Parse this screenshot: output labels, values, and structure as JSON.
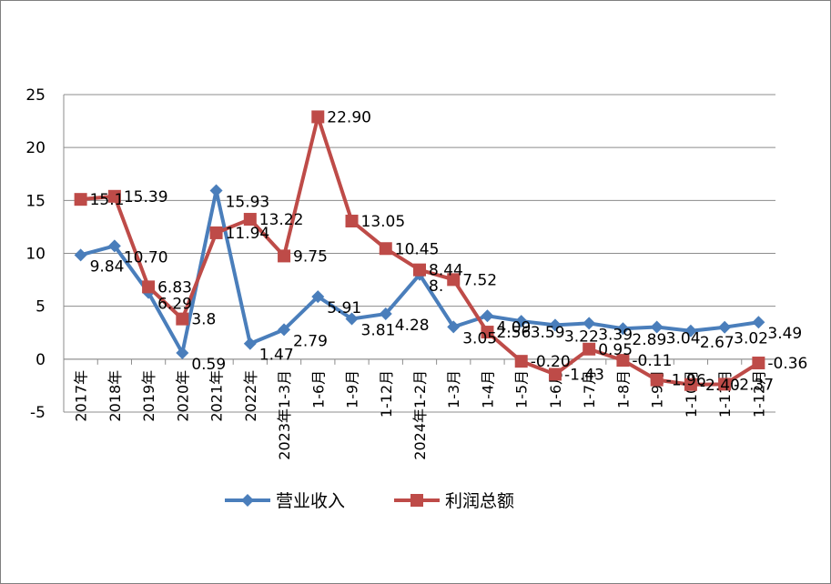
{
  "chart_data": {
    "type": "line",
    "categories": [
      "2017年",
      "2018年",
      "2019年",
      "2020年",
      "2021年",
      "2022年",
      "2023年1-3月",
      "1-6月",
      "1-9月",
      "1-12月",
      "2024年1-2月",
      "1-3月",
      "1-4月",
      "1-5月",
      "1-6月",
      "1-7月",
      "1-8月",
      "1-9月",
      "1-10月",
      "1-11月",
      "1-12月"
    ],
    "category_labels": [
      "2017年",
      "2018年",
      "2019年",
      "2020年",
      "2021年",
      "2022年",
      "2023年1-3月",
      "1-6月",
      "1-9月",
      "1-12月",
      "2024年1-2月",
      "1-3月",
      "1-4月",
      "1-5月",
      "1-6月",
      "1-7月",
      "1-8月",
      "1-9月",
      "1-10月",
      "1-11月",
      "1-12月"
    ],
    "series": [
      {
        "name": "营业收入",
        "color": "#4a7ebb",
        "marker": "diamond",
        "values": [
          9.84,
          10.7,
          6.29,
          0.59,
          15.93,
          1.47,
          2.79,
          5.91,
          3.81,
          4.28,
          8.0,
          3.05,
          4.09,
          3.59,
          3.22,
          3.39,
          2.89,
          3.04,
          2.67,
          3.02,
          3.49
        ],
        "labels": [
          "9.84",
          "10.70",
          "6.29",
          "0.59",
          "15.93",
          "1.47",
          "2.79",
          "5.91",
          "3.81",
          "4.28",
          "8.",
          "3.05",
          "4.09",
          "3.59",
          "3.22",
          "3.39",
          "2.89",
          "3.04",
          "2.67",
          "3.02",
          "3.49"
        ]
      },
      {
        "name": "利润总额",
        "color": "#be4b48",
        "marker": "square",
        "values": [
          15.1,
          15.39,
          6.83,
          3.8,
          11.94,
          13.22,
          9.75,
          22.9,
          13.05,
          10.45,
          8.44,
          7.52,
          2.56,
          -0.2,
          -1.43,
          0.95,
          -0.11,
          -1.96,
          -2.4,
          -2.37,
          -0.36
        ],
        "labels": [
          "15.1",
          "15.39",
          "6.83",
          "3.8",
          "11.94",
          "13.22",
          "9.75",
          "22.90",
          "13.05",
          "10.45",
          "8.44",
          "7.52",
          "2.56",
          "-0.20",
          "-1.43",
          "0.95",
          "-0.11",
          "-1.96",
          "-2.40",
          "-2.37",
          "-0.36"
        ]
      }
    ],
    "ylim": [
      -5,
      25
    ],
    "yticks": [
      -5,
      0,
      5,
      10,
      15,
      20,
      25
    ],
    "grid": true,
    "legend": "bottom",
    "title": "",
    "xlabel": "",
    "ylabel": ""
  }
}
